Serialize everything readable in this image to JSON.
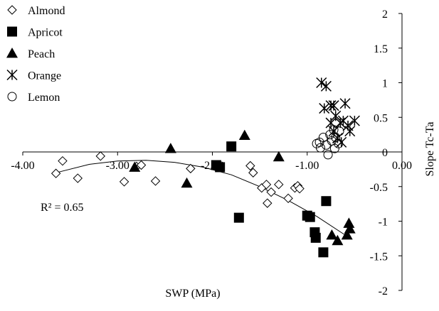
{
  "chart_data": {
    "type": "scatter",
    "title": "",
    "xlabel": "SWP (MPa)",
    "ylabel": "Slope Tc-Ta",
    "xlim": [
      -4.0,
      0.0
    ],
    "ylim": [
      -2.0,
      2.0
    ],
    "x_ticks": [
      -4.0,
      -3.0,
      -2.0,
      -1.0,
      0.0
    ],
    "x_tick_labels": [
      "-4.00",
      "-3.00",
      "-2.00",
      "-1.00",
      "0.00"
    ],
    "y_ticks": [
      -2,
      -1.5,
      -1,
      -0.5,
      0,
      0.5,
      1,
      1.5,
      2
    ],
    "y_tick_labels": [
      "-2",
      "-1.5",
      "-1",
      "-0.5",
      "0",
      "0.5",
      "1",
      "1.5",
      "2"
    ],
    "grid": false,
    "legend_position": "top-left",
    "annotation": "R² = 0.65",
    "trendline": {
      "type": "polynomial",
      "x_range": [
        -3.65,
        -0.6
      ],
      "points": [
        [
          -3.65,
          -0.3
        ],
        [
          -3.3,
          -0.18
        ],
        [
          -3.0,
          -0.13
        ],
        [
          -2.7,
          -0.12
        ],
        [
          -2.4,
          -0.15
        ],
        [
          -2.1,
          -0.22
        ],
        [
          -1.8,
          -0.33
        ],
        [
          -1.5,
          -0.5
        ],
        [
          -1.2,
          -0.7
        ],
        [
          -0.9,
          -0.93
        ],
        [
          -0.6,
          -1.2
        ]
      ]
    },
    "series": [
      {
        "name": "Almond",
        "marker": "diamond-open",
        "color": "#000000",
        "points": [
          [
            -3.65,
            -0.31
          ],
          [
            -3.58,
            -0.13
          ],
          [
            -3.42,
            -0.38
          ],
          [
            -3.18,
            -0.06
          ],
          [
            -2.93,
            -0.43
          ],
          [
            -2.8,
            -0.21
          ],
          [
            -2.75,
            -0.19
          ],
          [
            -2.6,
            -0.42
          ],
          [
            -2.23,
            -0.24
          ],
          [
            -1.95,
            -0.22
          ],
          [
            -1.6,
            -0.2
          ],
          [
            -1.57,
            -0.3
          ],
          [
            -1.48,
            -0.52
          ],
          [
            -1.43,
            -0.47
          ],
          [
            -1.42,
            -0.74
          ],
          [
            -1.38,
            -0.58
          ],
          [
            -1.3,
            -0.47
          ],
          [
            -1.2,
            -0.67
          ],
          [
            -1.13,
            -0.52
          ],
          [
            -1.1,
            -0.49
          ],
          [
            -1.08,
            -0.53
          ]
        ]
      },
      {
        "name": "Apricot",
        "marker": "square-filled",
        "color": "#000000",
        "points": [
          [
            -1.8,
            0.08
          ],
          [
            -1.96,
            -0.19
          ],
          [
            -1.92,
            -0.22
          ],
          [
            -1.72,
            -0.95
          ],
          [
            -1.0,
            -0.92
          ],
          [
            -0.97,
            -0.94
          ],
          [
            -0.92,
            -1.16
          ],
          [
            -0.91,
            -1.24
          ],
          [
            -0.8,
            -0.71
          ],
          [
            -0.83,
            -1.45
          ]
        ]
      },
      {
        "name": "Peach",
        "marker": "triangle-filled",
        "color": "#000000",
        "points": [
          [
            -2.82,
            -0.22
          ],
          [
            -2.44,
            0.05
          ],
          [
            -2.27,
            -0.45
          ],
          [
            -1.66,
            0.24
          ],
          [
            -1.3,
            -0.07
          ],
          [
            -0.74,
            -1.2
          ],
          [
            -0.68,
            -1.28
          ],
          [
            -0.58,
            -1.2
          ],
          [
            -0.56,
            -1.03
          ],
          [
            -0.55,
            -1.11
          ]
        ]
      },
      {
        "name": "Orange",
        "marker": "asterisk",
        "color": "#000000",
        "points": [
          [
            -0.85,
            1.0
          ],
          [
            -0.8,
            0.95
          ],
          [
            -0.82,
            0.63
          ],
          [
            -0.75,
            0.67
          ],
          [
            -0.72,
            0.67
          ],
          [
            -0.7,
            0.52
          ],
          [
            -0.65,
            0.42
          ],
          [
            -0.62,
            0.45
          ],
          [
            -0.6,
            0.7
          ],
          [
            -0.57,
            0.38
          ],
          [
            -0.55,
            0.3
          ],
          [
            -0.5,
            0.45
          ],
          [
            -0.72,
            0.3
          ],
          [
            -0.68,
            0.2
          ],
          [
            -0.64,
            0.14
          ],
          [
            -0.75,
            0.42
          ]
        ]
      },
      {
        "name": "Lemon",
        "marker": "circle-open",
        "color": "#000000",
        "points": [
          [
            -0.9,
            0.12
          ],
          [
            -0.86,
            0.06
          ],
          [
            -0.83,
            0.21
          ],
          [
            -0.8,
            0.1
          ],
          [
            -0.78,
            -0.04
          ],
          [
            -0.76,
            0.25
          ],
          [
            -0.74,
            0.16
          ],
          [
            -0.72,
            0.32
          ],
          [
            -0.71,
            0.05
          ],
          [
            -0.7,
            0.21
          ],
          [
            -0.67,
            0.12
          ],
          [
            -0.66,
            0.3
          ],
          [
            -0.87,
            0.14
          ]
        ]
      }
    ]
  }
}
